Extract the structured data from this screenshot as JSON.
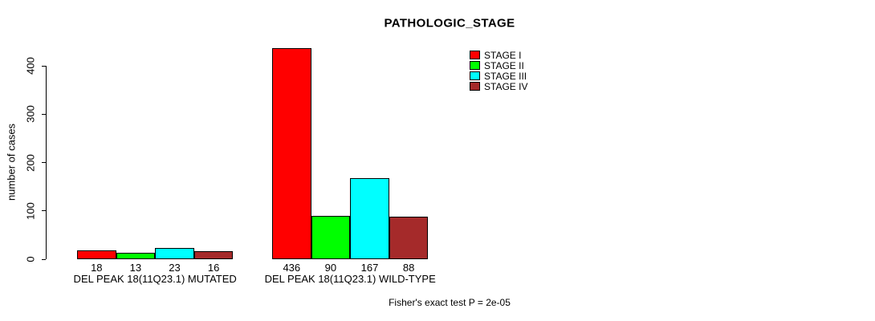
{
  "title": "PATHOLOGIC_STAGE",
  "footer": "Fisher's exact test P = 2e-05",
  "colors": {
    "stage_i": "#FF0000",
    "stage_ii": "#00FF00",
    "stage_iii": "#00FFFF",
    "stage_iv": "#A52A2A",
    "axis": "#000000",
    "background": "#FFFFFF"
  },
  "chart_data": {
    "type": "bar",
    "title": "PATHOLOGIC_STAGE",
    "xlabel": "",
    "ylabel": "number of cases",
    "ylim": [
      0,
      436
    ],
    "yticks": [
      0,
      100,
      200,
      300,
      400
    ],
    "grid": false,
    "categories": [
      "DEL PEAK 18(11Q23.1) MUTATED",
      "DEL PEAK 18(11Q23.1) WILD-TYPE"
    ],
    "series": [
      {
        "name": "STAGE I",
        "color": "#FF0000",
        "values": [
          18,
          436
        ]
      },
      {
        "name": "STAGE II",
        "color": "#00FF00",
        "values": [
          13,
          90
        ]
      },
      {
        "name": "STAGE III",
        "color": "#00FFFF",
        "values": [
          23,
          167
        ]
      },
      {
        "name": "STAGE IV",
        "color": "#A52A2A",
        "values": [
          16,
          88
        ]
      }
    ],
    "bar_value_labels_shown": true,
    "legend": {
      "position": "top-right",
      "entries": [
        {
          "label": "STAGE I",
          "color": "#FF0000"
        },
        {
          "label": "STAGE II",
          "color": "#00FF00"
        },
        {
          "label": "STAGE III",
          "color": "#00FFFF"
        },
        {
          "label": "STAGE IV",
          "color": "#A52A2A"
        }
      ]
    },
    "annotation": "Fisher's exact test P = 2e-05"
  }
}
